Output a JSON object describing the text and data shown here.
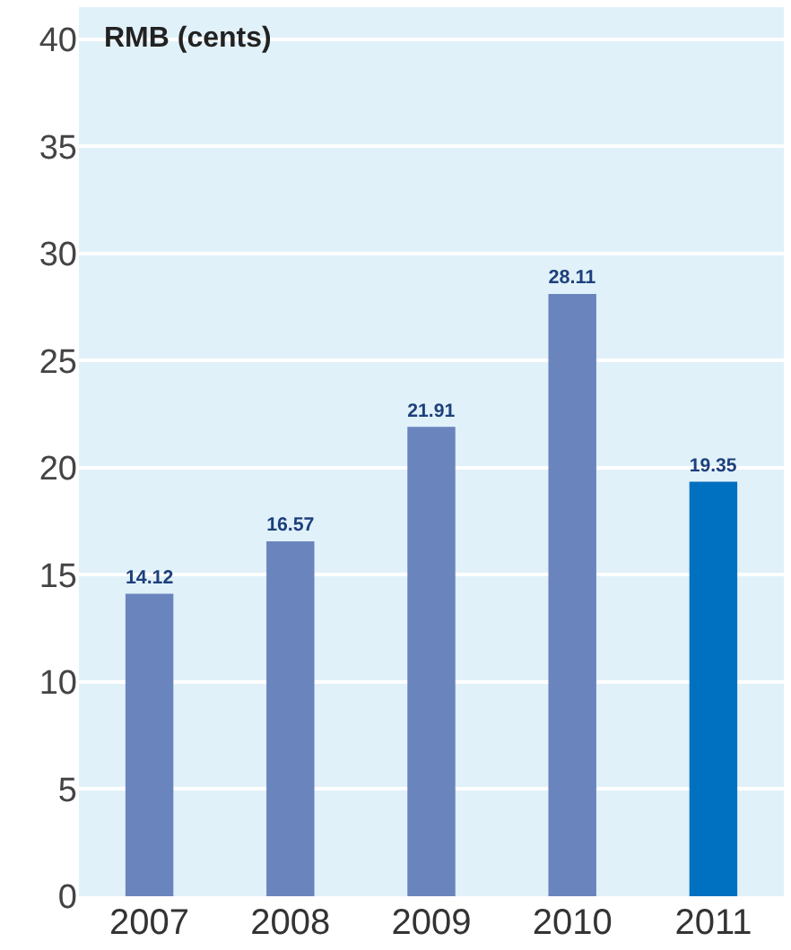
{
  "chart_data": {
    "type": "bar",
    "ylabel": "RMB (cents)",
    "categories": [
      "2007",
      "2008",
      "2009",
      "2010",
      "2011"
    ],
    "values": [
      14.12,
      16.57,
      21.91,
      28.11,
      19.35
    ],
    "colors": [
      "#6a85bd",
      "#6a85bd",
      "#6a85bd",
      "#6a85bd",
      "#0070c0"
    ],
    "ylim": [
      0,
      41.5
    ],
    "yticks": [
      0,
      5,
      10,
      15,
      20,
      25,
      30,
      35,
      40
    ],
    "grid": "y",
    "data_labels": true
  }
}
